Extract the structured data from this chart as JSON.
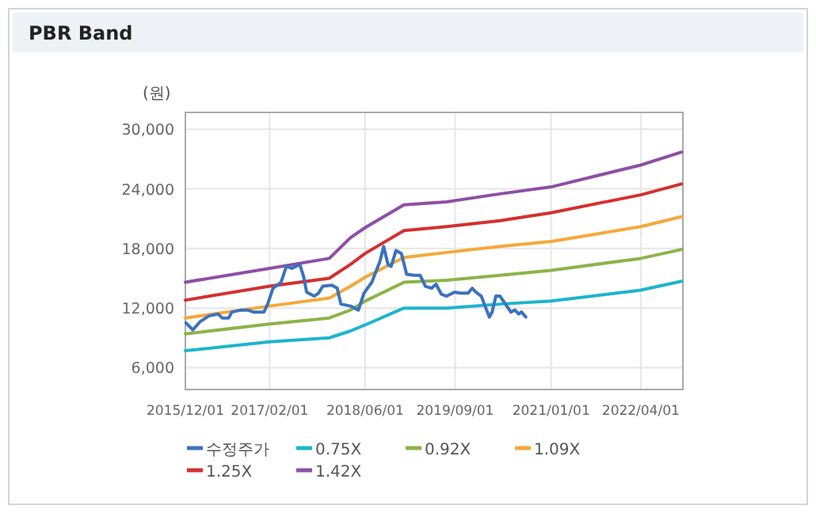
{
  "chart_data": {
    "type": "line",
    "title": "PBR Band",
    "ylabel": "(원)",
    "x": [
      "2015-12-01",
      "2017-02-01",
      "2017-12-01",
      "2018-03-19",
      "2018-06-01",
      "2018-12-15",
      "2019-07-20",
      "2020-04-16",
      "2021-01-01",
      "2022-04-01",
      "2022-10-25"
    ],
    "xlim": [
      "2015-12-01",
      "2022-11-01"
    ],
    "ylim": [
      3800,
      31700
    ],
    "xticks": [
      {
        "value": "2015-12-01",
        "label": "2015/12/01"
      },
      {
        "value": "2017-02-01",
        "label": "2017/02/01"
      },
      {
        "value": "2018-06-01",
        "label": "2018/06/01"
      },
      {
        "value": "2019-09-01",
        "label": "2019/09/01"
      },
      {
        "value": "2021-01-01",
        "label": "2021/01/01"
      },
      {
        "value": "2022-04-01",
        "label": "2022/04/01"
      }
    ],
    "yticks": [
      {
        "value": 6000,
        "label": "6,000"
      },
      {
        "value": 12000,
        "label": "12,000"
      },
      {
        "value": 18000,
        "label": "18,000"
      },
      {
        "value": 24000,
        "label": "24,000"
      },
      {
        "value": 30000,
        "label": "30,000"
      }
    ],
    "grid": true,
    "legend": "bottom",
    "series": [
      {
        "name": "수정주가",
        "color": "#3b72bf",
        "x": [
          "2015-12-04",
          "2016-01-08",
          "2016-02-12",
          "2016-03-29",
          "2016-05-15",
          "2016-06-05",
          "2016-07-08",
          "2016-07-24",
          "2016-09-08",
          "2016-10-14",
          "2016-11-10",
          "2017-01-03",
          "2017-01-22",
          "2017-02-18",
          "2017-03-31",
          "2017-04-27",
          "2017-05-24",
          "2017-06-15",
          "2017-07-04",
          "2017-07-23",
          "2017-08-08",
          "2017-09-15",
          "2017-10-07",
          "2017-10-29",
          "2017-12-14",
          "2018-01-10",
          "2018-01-29",
          "2018-03-19",
          "2018-04-28",
          "2018-05-26",
          "2018-07-05",
          "2018-08-15",
          "2018-09-03",
          "2018-09-25",
          "2018-10-11",
          "2018-11-05",
          "2018-12-02",
          "2018-12-29",
          "2019-02-07",
          "2019-03-07",
          "2019-04-03",
          "2019-05-05",
          "2019-05-27",
          "2019-06-23",
          "2019-07-20",
          "2019-08-30",
          "2019-09-26",
          "2019-11-06",
          "2019-11-27",
          "2019-12-16",
          "2020-01-12",
          "2020-01-31",
          "2020-02-22",
          "2020-03-07",
          "2020-03-26",
          "2020-04-16",
          "2020-05-14",
          "2020-06-10",
          "2020-07-01",
          "2020-07-20",
          "2020-08-03",
          "2020-08-25"
        ],
        "values": [
          10500,
          9800,
          10600,
          11200,
          11400,
          11000,
          11000,
          11600,
          11800,
          11800,
          11600,
          11600,
          12400,
          14000,
          14600,
          16200,
          16000,
          16200,
          16400,
          15200,
          13600,
          13200,
          13500,
          14200,
          14300,
          14000,
          12400,
          12200,
          11800,
          13500,
          14600,
          16700,
          18200,
          16400,
          16200,
          17800,
          17500,
          15400,
          15300,
          15300,
          14200,
          14000,
          14400,
          13400,
          13200,
          13600,
          13500,
          13500,
          14000,
          13600,
          13200,
          12200,
          11100,
          11600,
          13200,
          13200,
          12400,
          11600,
          11800,
          11400,
          11600,
          11100
        ]
      },
      {
        "name": "0.75X",
        "color": "#1cb5cc",
        "values": [
          7700,
          8600,
          9000,
          9700,
          10300,
          12000,
          12000,
          12400,
          12700,
          13800,
          14700
        ]
      },
      {
        "name": "0.92X",
        "color": "#8db34a",
        "values": [
          9400,
          10400,
          11000,
          11800,
          12700,
          14600,
          14800,
          15300,
          15800,
          17000,
          17900
        ]
      },
      {
        "name": "1.09X",
        "color": "#f4a83a",
        "values": [
          11000,
          12200,
          13000,
          14200,
          15100,
          17100,
          17600,
          18200,
          18700,
          20200,
          21200
        ]
      },
      {
        "name": "1.25X",
        "color": "#d4302f",
        "values": [
          12800,
          14200,
          15000,
          16400,
          17500,
          19800,
          20200,
          20800,
          21600,
          23400,
          24500
        ]
      },
      {
        "name": "1.42X",
        "color": "#8e4fa3",
        "values": [
          14600,
          16000,
          17000,
          19100,
          20100,
          22400,
          22700,
          23500,
          24200,
          26400,
          27700
        ]
      }
    ]
  }
}
